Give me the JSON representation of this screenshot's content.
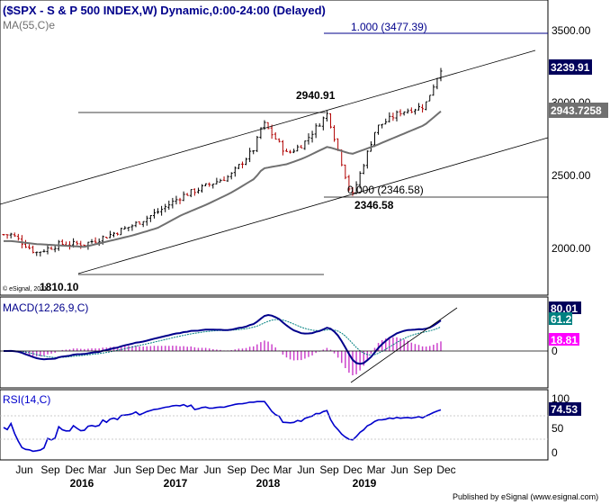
{
  "header": {
    "title": "($SPX - S & P 500 INDEX,W) Dynamic,0:00-24:00 (Delayed)",
    "ma_label": "MA(55,C)e"
  },
  "watermark": "© eSignal, 2011",
  "footer": "Published by eSignal (www.esignal.com)",
  "colors": {
    "up_candle": "#000000",
    "down_candle": "#b00000",
    "ma": "#707070",
    "macd": "#00008b",
    "signal": "#008080",
    "histogram": "#cc44cc",
    "rsi": "#0000cc",
    "badge_bg": "#00005a",
    "badge_fg": "#ffffff",
    "hist_badge_bg": "#ff00ff",
    "signal_badge_bg": "#008080"
  },
  "price_panel": {
    "y_ticks": [
      "3500.00",
      "3000.00",
      "2500.00",
      "2000.00"
    ],
    "last_price": "3239.91",
    "ma_value": "2943.7258",
    "annotations": {
      "fib_high": "1.000 (3477.39)",
      "fib_low": "0.000 (2346.58)",
      "peak": "2940.91",
      "trough_2018": "2346.58",
      "low_2016": "1810.10"
    }
  },
  "macd_panel": {
    "label": "MACD(12,26,9,C)",
    "macd_value": "80.01",
    "signal_value": "61.2",
    "hist_value": "18.81",
    "zero_label": "0"
  },
  "rsi_panel": {
    "label": "RSI(14,C)",
    "value": "74.53",
    "ticks": [
      "100",
      "50",
      "0"
    ]
  },
  "x_axis": {
    "month_labels": [
      "Jun",
      "Sep",
      "Dec",
      "Mar",
      "Jun",
      "Sep",
      "Dec",
      "Mar",
      "Jun",
      "Sep",
      "Dec",
      "Mar",
      "Jun",
      "Sep",
      "Dec",
      "Mar",
      "Jun",
      "Sep",
      "Dec"
    ],
    "year_labels": [
      "2016",
      "2017",
      "2018",
      "2019"
    ]
  },
  "chart_data": {
    "type": "line",
    "title": "($SPX - S & P 500 INDEX,W) Dynamic,0:00-24:00 (Delayed)",
    "x": [
      "2015-06",
      "2015-09",
      "2015-12",
      "2016-03",
      "2016-06",
      "2016-09",
      "2016-12",
      "2017-03",
      "2017-06",
      "2017-09",
      "2017-12",
      "2018-01",
      "2018-04",
      "2018-06",
      "2018-09",
      "2018-12",
      "2019-03",
      "2019-06",
      "2019-09",
      "2019-11"
    ],
    "series": [
      {
        "name": "$SPX",
        "values": [
          2095,
          1970,
          2030,
          2030,
          2090,
          2160,
          2250,
          2360,
          2430,
          2500,
          2690,
          2870,
          2650,
          2720,
          2930,
          2350,
          2830,
          2940,
          2980,
          3240
        ]
      },
      {
        "name": "MA(55,C)e",
        "values": [
          2050,
          2030,
          2020,
          2010,
          2050,
          2090,
          2140,
          2230,
          2300,
          2380,
          2480,
          2550,
          2580,
          2620,
          2700,
          2650,
          2710,
          2780,
          2850,
          2944
        ]
      }
    ],
    "ylim": [
      1700,
      3650
    ],
    "key_levels": {
      "low_2016": 1810.1,
      "peak_2018": 2940.91,
      "trough_2018": 2346.58,
      "fib_1_000": 3477.39,
      "last": 3239.91,
      "ma55": 2943.7258
    },
    "macd": {
      "label": "MACD(12,26,9,C)",
      "macd_last": 80.01,
      "signal_last": 61.2,
      "hist_last": 18.81
    },
    "rsi": {
      "label": "RSI(14,C)",
      "last": 74.53,
      "ylim": [
        0,
        100
      ]
    }
  }
}
